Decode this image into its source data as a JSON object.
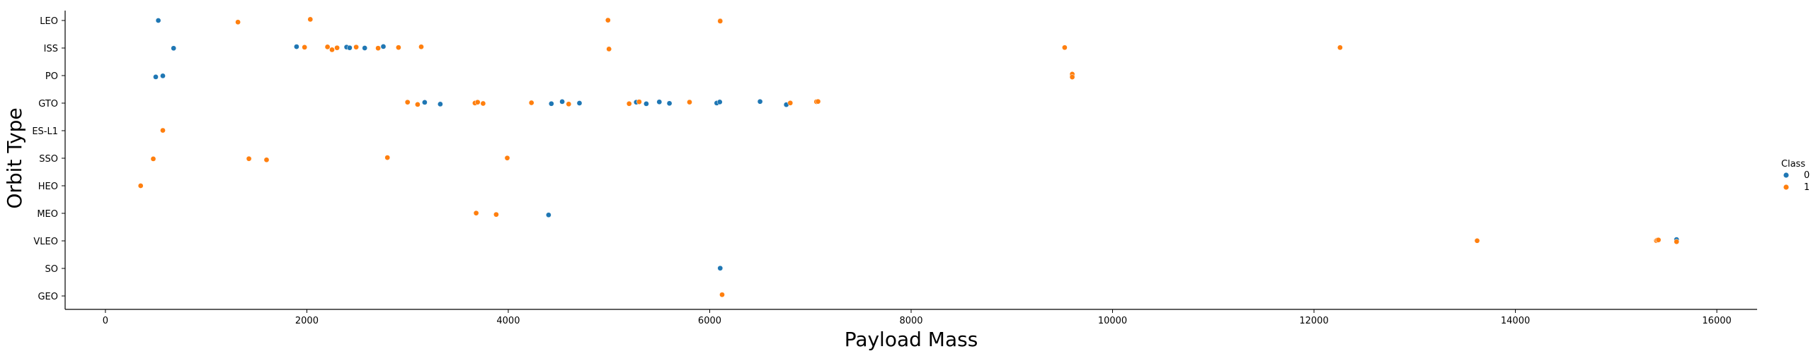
{
  "chart_data": {
    "type": "scatter",
    "title": "",
    "xlabel": "Payload Mass",
    "ylabel": "Orbit Type",
    "xlim": [
      -400,
      16400
    ],
    "xticks": [
      0,
      2000,
      4000,
      6000,
      8000,
      10000,
      12000,
      14000,
      16000
    ],
    "categories": [
      "LEO",
      "ISS",
      "PO",
      "GTO",
      "ES-L1",
      "SSO",
      "HEO",
      "MEO",
      "VLEO",
      "SO",
      "GEO"
    ],
    "grid": false,
    "legend": {
      "title": "Class",
      "placement": "right"
    },
    "series": [
      {
        "name": "0",
        "color": "#1f77b4",
        "points": [
          {
            "x": 525,
            "y": "LEO"
          },
          {
            "x": 677,
            "y": "ISS"
          },
          {
            "x": 1898,
            "y": "ISS"
          },
          {
            "x": 2395,
            "y": "ISS"
          },
          {
            "x": 2425,
            "y": "ISS"
          },
          {
            "x": 2575,
            "y": "ISS"
          },
          {
            "x": 2760,
            "y": "ISS"
          },
          {
            "x": 500,
            "y": "PO"
          },
          {
            "x": 570,
            "y": "PO"
          },
          {
            "x": 9600,
            "y": "PO"
          },
          {
            "x": 3170,
            "y": "GTO"
          },
          {
            "x": 3325,
            "y": "GTO"
          },
          {
            "x": 4428,
            "y": "GTO"
          },
          {
            "x": 4535,
            "y": "GTO"
          },
          {
            "x": 4707,
            "y": "GTO"
          },
          {
            "x": 5271,
            "y": "GTO"
          },
          {
            "x": 5370,
            "y": "GTO"
          },
          {
            "x": 5500,
            "y": "GTO"
          },
          {
            "x": 5600,
            "y": "GTO"
          },
          {
            "x": 6070,
            "y": "GTO"
          },
          {
            "x": 6100,
            "y": "GTO"
          },
          {
            "x": 6500,
            "y": "GTO"
          },
          {
            "x": 6761,
            "y": "GTO"
          },
          {
            "x": 4400,
            "y": "MEO"
          },
          {
            "x": 15600,
            "y": "VLEO"
          },
          {
            "x": 6104,
            "y": "SO"
          }
        ]
      },
      {
        "name": "1",
        "color": "#ff7f0e",
        "points": [
          {
            "x": 1316,
            "y": "LEO"
          },
          {
            "x": 2034,
            "y": "LEO"
          },
          {
            "x": 4990,
            "y": "LEO"
          },
          {
            "x": 6104,
            "y": "LEO"
          },
          {
            "x": 6104,
            "y": "LEO"
          },
          {
            "x": 1977,
            "y": "ISS"
          },
          {
            "x": 2205,
            "y": "ISS"
          },
          {
            "x": 2250,
            "y": "ISS"
          },
          {
            "x": 2300,
            "y": "ISS"
          },
          {
            "x": 2490,
            "y": "ISS"
          },
          {
            "x": 2708,
            "y": "ISS"
          },
          {
            "x": 2910,
            "y": "ISS"
          },
          {
            "x": 3136,
            "y": "ISS"
          },
          {
            "x": 5000,
            "y": "ISS"
          },
          {
            "x": 9525,
            "y": "ISS"
          },
          {
            "x": 12259,
            "y": "ISS"
          },
          {
            "x": 9600,
            "y": "PO"
          },
          {
            "x": 9600,
            "y": "PO"
          },
          {
            "x": 3000,
            "y": "GTO"
          },
          {
            "x": 3100,
            "y": "GTO"
          },
          {
            "x": 3669,
            "y": "GTO"
          },
          {
            "x": 3696,
            "y": "GTO"
          },
          {
            "x": 3750,
            "y": "GTO"
          },
          {
            "x": 4230,
            "y": "GTO"
          },
          {
            "x": 4600,
            "y": "GTO"
          },
          {
            "x": 5200,
            "y": "GTO"
          },
          {
            "x": 5300,
            "y": "GTO"
          },
          {
            "x": 5800,
            "y": "GTO"
          },
          {
            "x": 6800,
            "y": "GTO"
          },
          {
            "x": 7060,
            "y": "GTO"
          },
          {
            "x": 7076,
            "y": "GTO"
          },
          {
            "x": 570,
            "y": "ES-L1"
          },
          {
            "x": 475,
            "y": "SSO"
          },
          {
            "x": 1425,
            "y": "SSO"
          },
          {
            "x": 1600,
            "y": "SSO"
          },
          {
            "x": 2800,
            "y": "SSO"
          },
          {
            "x": 3990,
            "y": "SSO"
          },
          {
            "x": 350,
            "y": "HEO"
          },
          {
            "x": 3681,
            "y": "MEO"
          },
          {
            "x": 3880,
            "y": "MEO"
          },
          {
            "x": 13620,
            "y": "VLEO"
          },
          {
            "x": 15400,
            "y": "VLEO"
          },
          {
            "x": 15410,
            "y": "VLEO"
          },
          {
            "x": 15420,
            "y": "VLEO"
          },
          {
            "x": 15600,
            "y": "VLEO"
          },
          {
            "x": 6123,
            "y": "GEO"
          }
        ]
      }
    ]
  }
}
